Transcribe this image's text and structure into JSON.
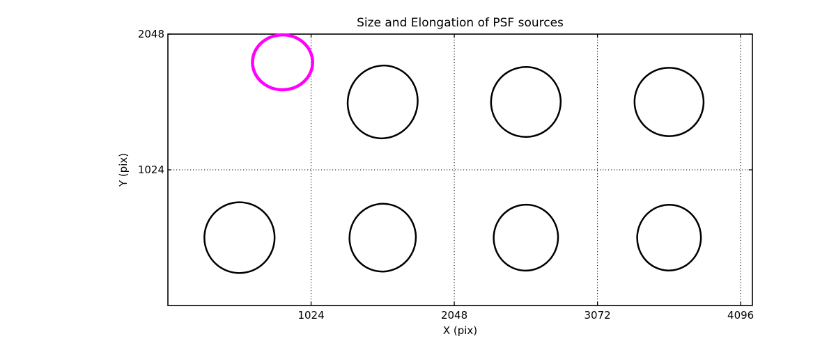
{
  "chart_data": {
    "type": "scatter",
    "title": "Size and Elongation of PSF sources",
    "xlabel": "X (pix)",
    "ylabel": "Y (pix)",
    "xlim": [
      0,
      4180
    ],
    "ylim": [
      0,
      2048
    ],
    "xticks": [
      1024,
      2048,
      3072,
      4096
    ],
    "xtick_labels": [
      "1024",
      "2048",
      "3072",
      "4096"
    ],
    "yticks": [
      1024,
      2048
    ],
    "ytick_labels": [
      "1024",
      "2048"
    ],
    "grid": "dotted",
    "legend": "none",
    "background_color": "#ffffff",
    "axis_color": "#000000",
    "default_source_color": "#000000",
    "highlight_color": "#ff00ff",
    "points": [
      {
        "x": 820,
        "y": 1835,
        "a": 215,
        "b": 207,
        "angle": 0,
        "color": "#ff00ff",
        "lw": 4.5,
        "highlight": true
      },
      {
        "x": 1536,
        "y": 1536,
        "a": 249,
        "b": 276,
        "angle": 18,
        "color": "#000000",
        "lw": 2.5,
        "highlight": false
      },
      {
        "x": 2560,
        "y": 1536,
        "a": 249,
        "b": 264,
        "angle": 15,
        "color": "#000000",
        "lw": 2.5,
        "highlight": false
      },
      {
        "x": 3584,
        "y": 1536,
        "a": 247,
        "b": 258,
        "angle": 10,
        "color": "#000000",
        "lw": 2.5,
        "highlight": false
      },
      {
        "x": 512,
        "y": 512,
        "a": 251,
        "b": 267,
        "angle": 10,
        "color": "#000000",
        "lw": 2.5,
        "highlight": false
      },
      {
        "x": 1536,
        "y": 512,
        "a": 237,
        "b": 256,
        "angle": 14,
        "color": "#000000",
        "lw": 2.5,
        "highlight": false
      },
      {
        "x": 2560,
        "y": 512,
        "a": 230,
        "b": 249,
        "angle": 10,
        "color": "#000000",
        "lw": 2.5,
        "highlight": false
      },
      {
        "x": 3584,
        "y": 512,
        "a": 228,
        "b": 248,
        "angle": 6,
        "color": "#000000",
        "lw": 2.5,
        "highlight": false
      }
    ]
  }
}
